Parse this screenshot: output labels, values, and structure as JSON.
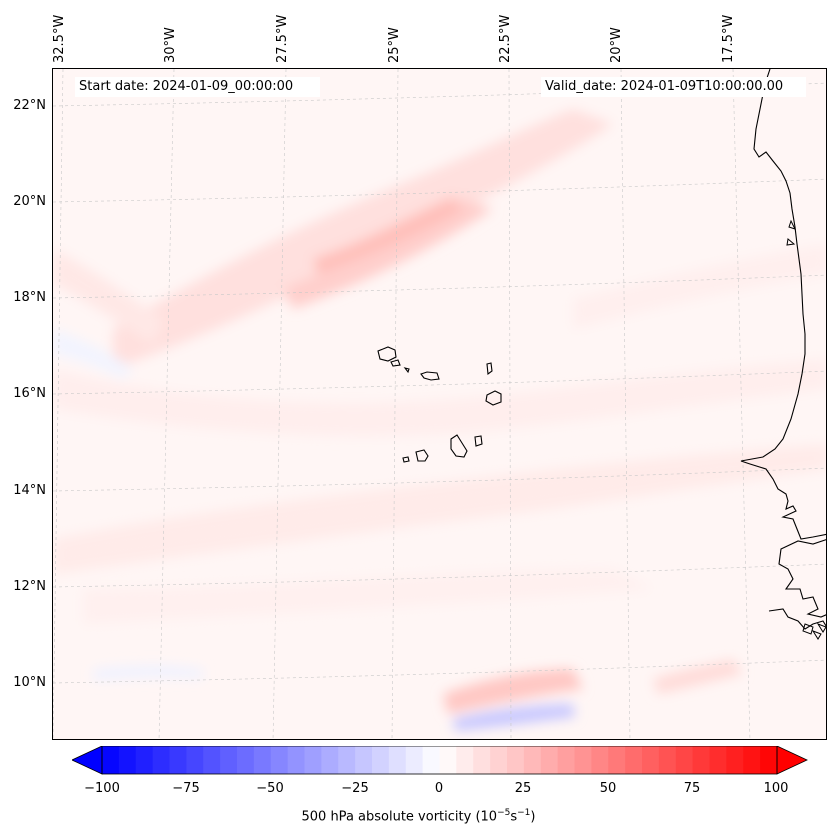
{
  "map": {
    "start_date_text": "Start date: 2024-01-09_00:00:00",
    "valid_date_text": "Valid_date: 2024-01-09T10:00:00.00",
    "longitude_labels": [
      "32.5°W",
      "30°W",
      "27.5°W",
      "25°W",
      "22.5°W",
      "20°W",
      "17.5°W"
    ],
    "latitude_labels": [
      "22°N",
      "20°N",
      "18°N",
      "16°N",
      "14°N",
      "12°N",
      "10°N"
    ],
    "extent": {
      "lon_min": -32.6,
      "lon_max": -15.5,
      "lat_min": 8.9,
      "lat_max": 22.8
    },
    "field": "500 hPa absolute vorticity",
    "colors": {
      "positive": "#ff0000",
      "negative": "#0000ff",
      "coastline": "#000000",
      "gridline": "#b0b0b0"
    }
  },
  "colorbar": {
    "label_prefix": "500 hPa absolute vorticity (10",
    "label_exp1": "−5",
    "label_mid": "s",
    "label_exp2": "−1",
    "label_suffix": ")",
    "min": -100,
    "max": 100,
    "levels": 40,
    "ticks": [
      "−100",
      "−75",
      "−50",
      "−25",
      "0",
      "25",
      "50",
      "75",
      "100"
    ],
    "extend": "both",
    "cmap": "bwr"
  }
}
